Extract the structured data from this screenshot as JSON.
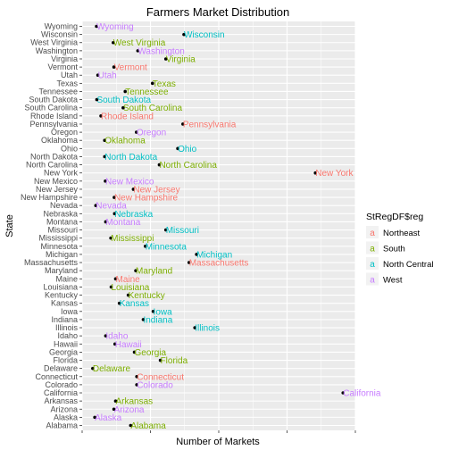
{
  "chart_data": {
    "type": "scatter",
    "title": "Farmers Market Distribution",
    "xlabel": "Number of Markets",
    "ylabel": "State",
    "xlim": [
      0,
      800
    ],
    "grid": true,
    "legend": {
      "title": "StRegDF$reg",
      "placement": "right",
      "entries": [
        {
          "name": "Northeast",
          "color": "#F8766D"
        },
        {
          "name": "South",
          "color": "#7CAE00"
        },
        {
          "name": "North Central",
          "color": "#00BFC4"
        },
        {
          "name": "West",
          "color": "#C77CFF"
        }
      ]
    },
    "categories": [
      "Alabama",
      "Alaska",
      "Arizona",
      "Arkansas",
      "California",
      "Colorado",
      "Connecticut",
      "Delaware",
      "Florida",
      "Georgia",
      "Hawaii",
      "Idaho",
      "Illinois",
      "Indiana",
      "Iowa",
      "Kansas",
      "Kentucky",
      "Louisiana",
      "Maine",
      "Maryland",
      "Massachusetts",
      "Michigan",
      "Minnesota",
      "Mississippi",
      "Missouri",
      "Montana",
      "Nebraska",
      "Nevada",
      "New Hampshire",
      "New Jersey",
      "New Mexico",
      "New York",
      "North Carolina",
      "North Dakota",
      "Ohio",
      "Oklahoma",
      "Oregon",
      "Pennsylvania",
      "Rhode Island",
      "South Carolina",
      "South Dakota",
      "Tennessee",
      "Texas",
      "Utah",
      "Vermont",
      "Virginia",
      "Washington",
      "West Virginia",
      "Wisconsin",
      "Wyoming"
    ],
    "values": [
      142,
      37,
      93,
      98,
      764,
      160,
      160,
      31,
      229,
      153,
      96,
      69,
      330,
      179,
      208,
      109,
      135,
      85,
      98,
      157,
      313,
      335,
      185,
      84,
      245,
      69,
      95,
      40,
      94,
      150,
      68,
      683,
      226,
      66,
      280,
      66,
      159,
      295,
      55,
      120,
      43,
      126,
      206,
      46,
      93,
      245,
      163,
      91,
      298,
      42
    ],
    "regions": [
      "South",
      "West",
      "West",
      "South",
      "West",
      "West",
      "Northeast",
      "South",
      "South",
      "South",
      "West",
      "West",
      "North Central",
      "North Central",
      "North Central",
      "North Central",
      "South",
      "South",
      "Northeast",
      "South",
      "Northeast",
      "North Central",
      "North Central",
      "South",
      "North Central",
      "West",
      "North Central",
      "West",
      "Northeast",
      "Northeast",
      "West",
      "Northeast",
      "South",
      "North Central",
      "North Central",
      "South",
      "West",
      "Northeast",
      "Northeast",
      "South",
      "North Central",
      "South",
      "South",
      "West",
      "Northeast",
      "South",
      "West",
      "South",
      "North Central",
      "West"
    ]
  }
}
